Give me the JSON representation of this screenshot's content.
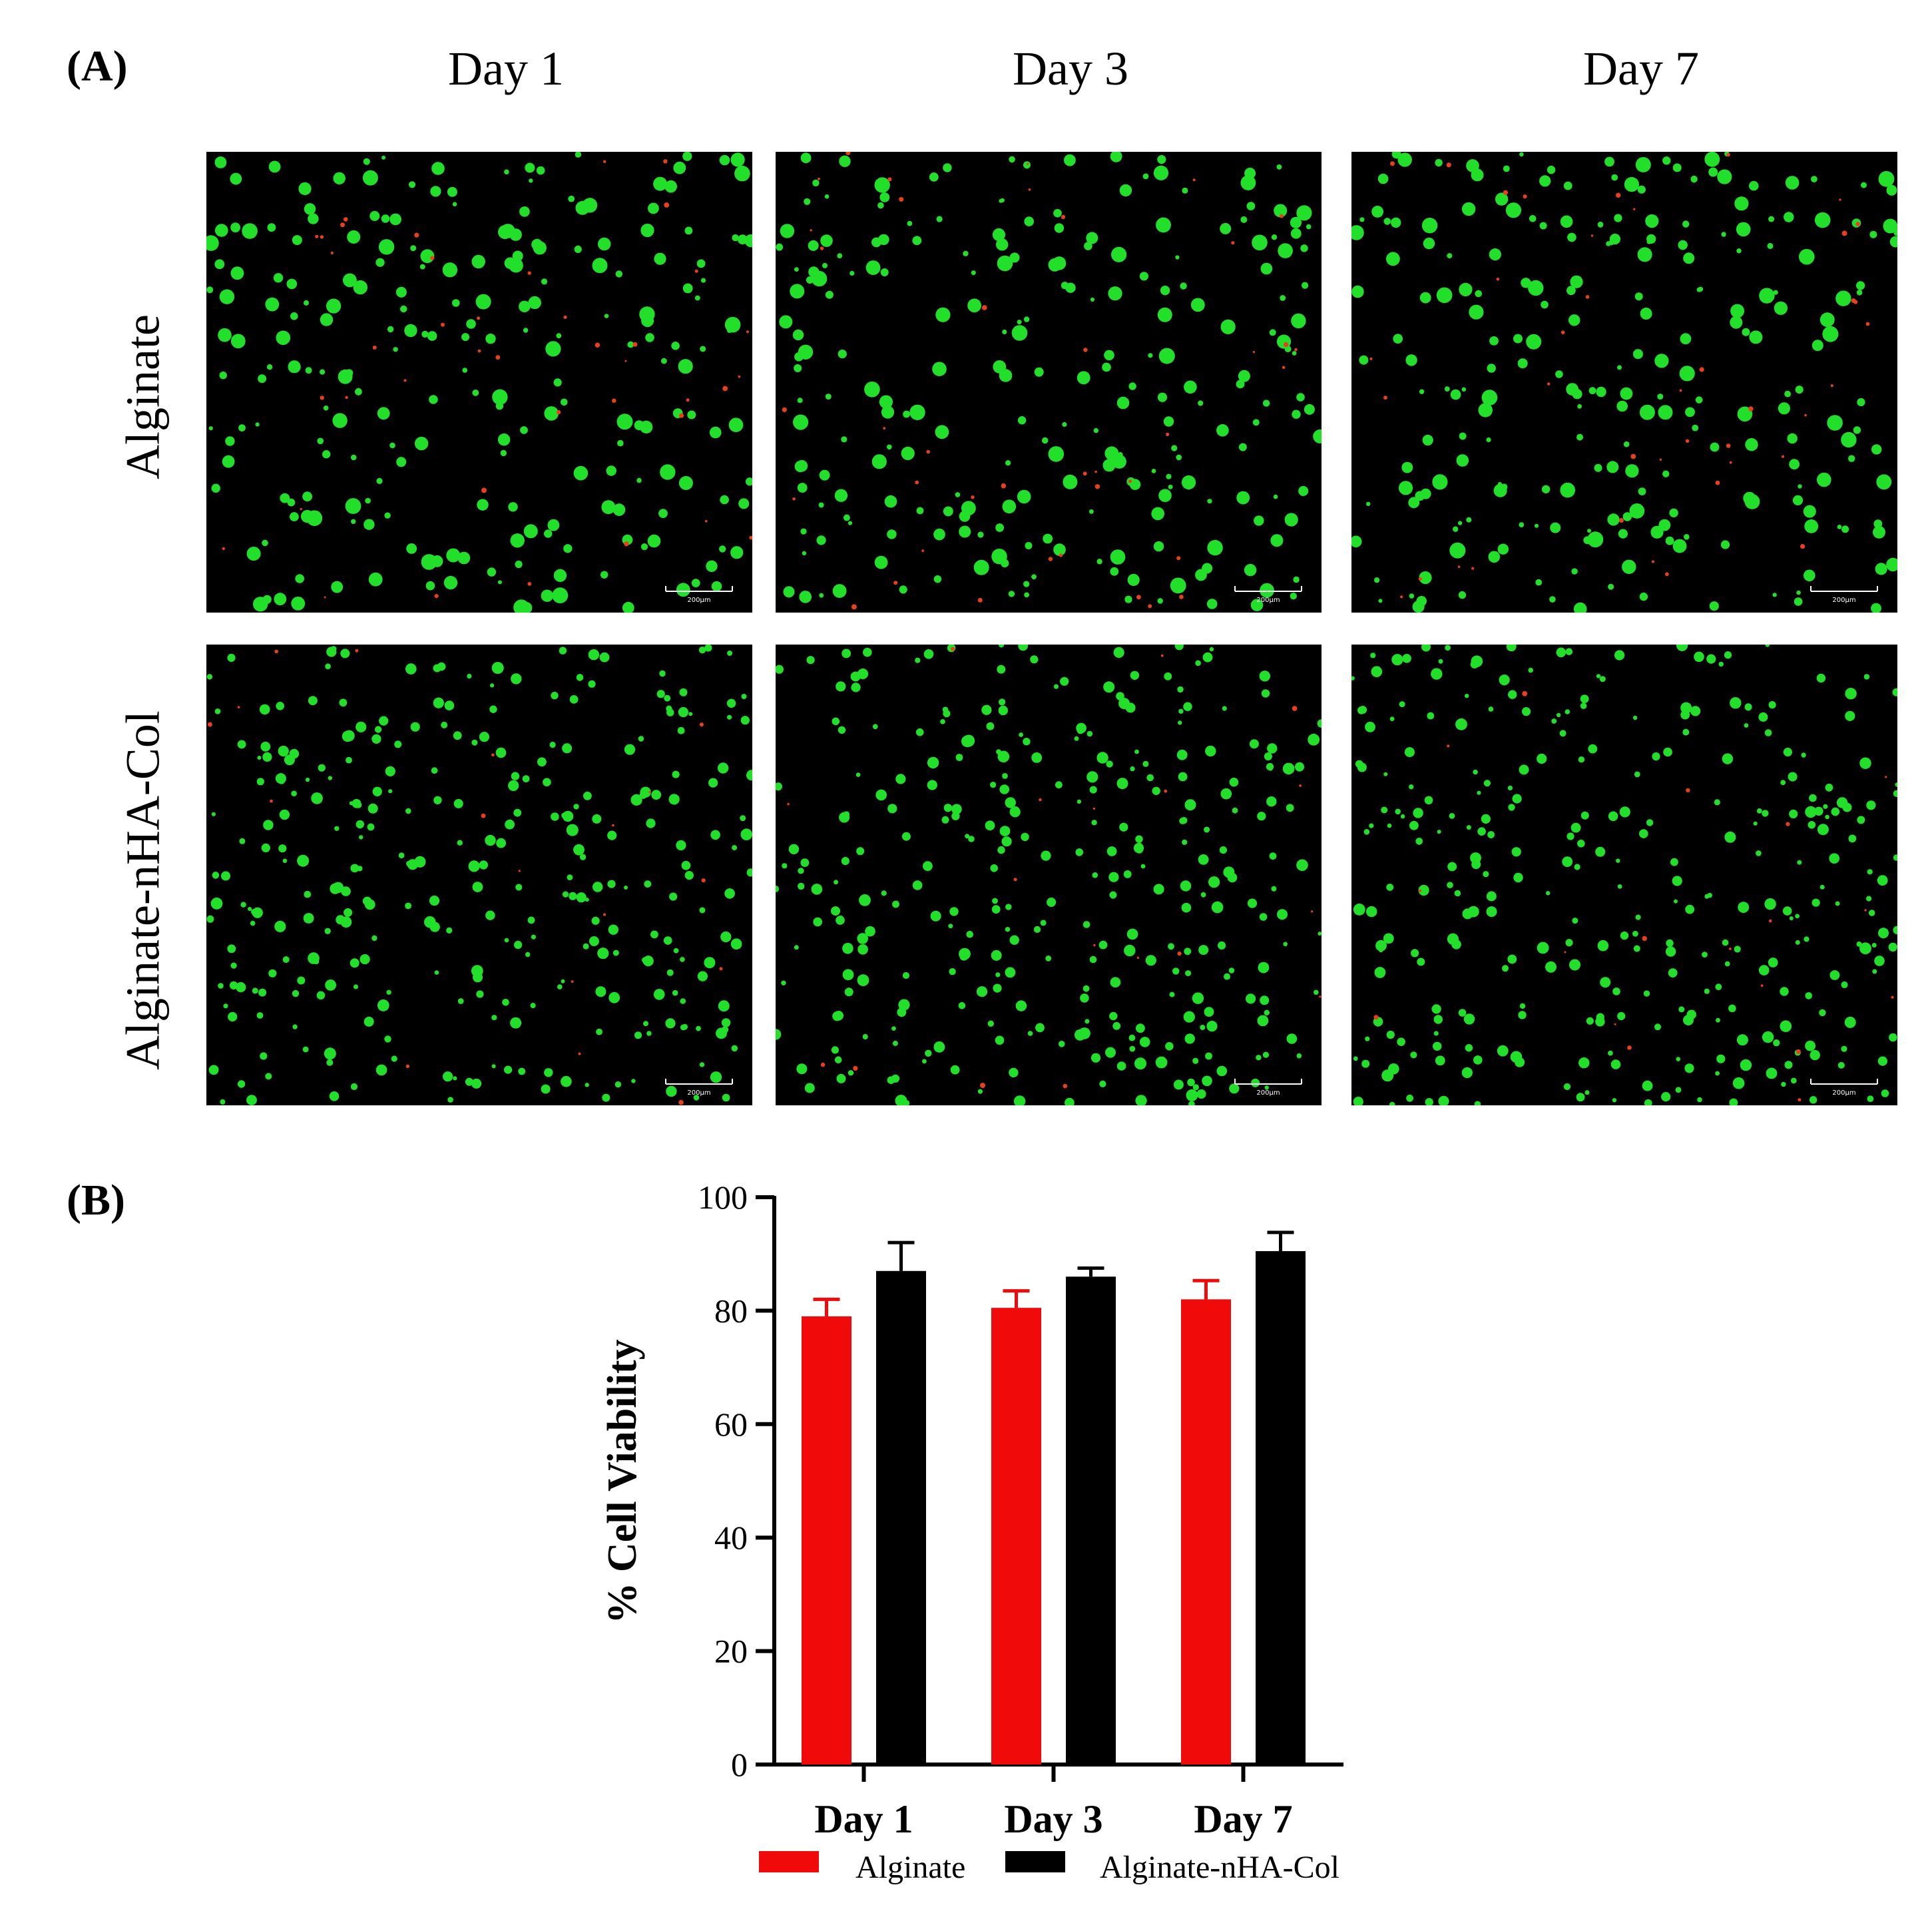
{
  "panel_a": {
    "label": "(A)",
    "columns": [
      "Day 1",
      "Day 3",
      "Day 7"
    ],
    "rows": [
      "Alginate",
      "Alginate-nHA-Col"
    ],
    "scale_bar_labels": [
      "200μm",
      "200μm",
      "200μm",
      "200μm",
      "200μm",
      "200μm"
    ],
    "colors": {
      "live": "#22e02a",
      "dead": "#e8401a",
      "background": "#000000"
    }
  },
  "panel_b": {
    "label": "(B)"
  },
  "chart_data": {
    "type": "bar",
    "categories": [
      "Day 1",
      "Day 3",
      "Day 7"
    ],
    "series": [
      {
        "name": "Alginate",
        "color": "#f00a0a",
        "values": [
          79,
          80.5,
          82
        ],
        "errors": [
          3,
          3,
          3.3
        ]
      },
      {
        "name": "Alginate-nHA-Col",
        "color": "#000000",
        "values": [
          87,
          86,
          90.5
        ],
        "errors": [
          5,
          1.5,
          3.3
        ]
      }
    ],
    "ylabel": "% Cell Viability",
    "ylim": [
      0,
      100
    ],
    "yticks": [
      0,
      20,
      40,
      60,
      80,
      100
    ],
    "legend_position": "bottom",
    "grid": false
  }
}
